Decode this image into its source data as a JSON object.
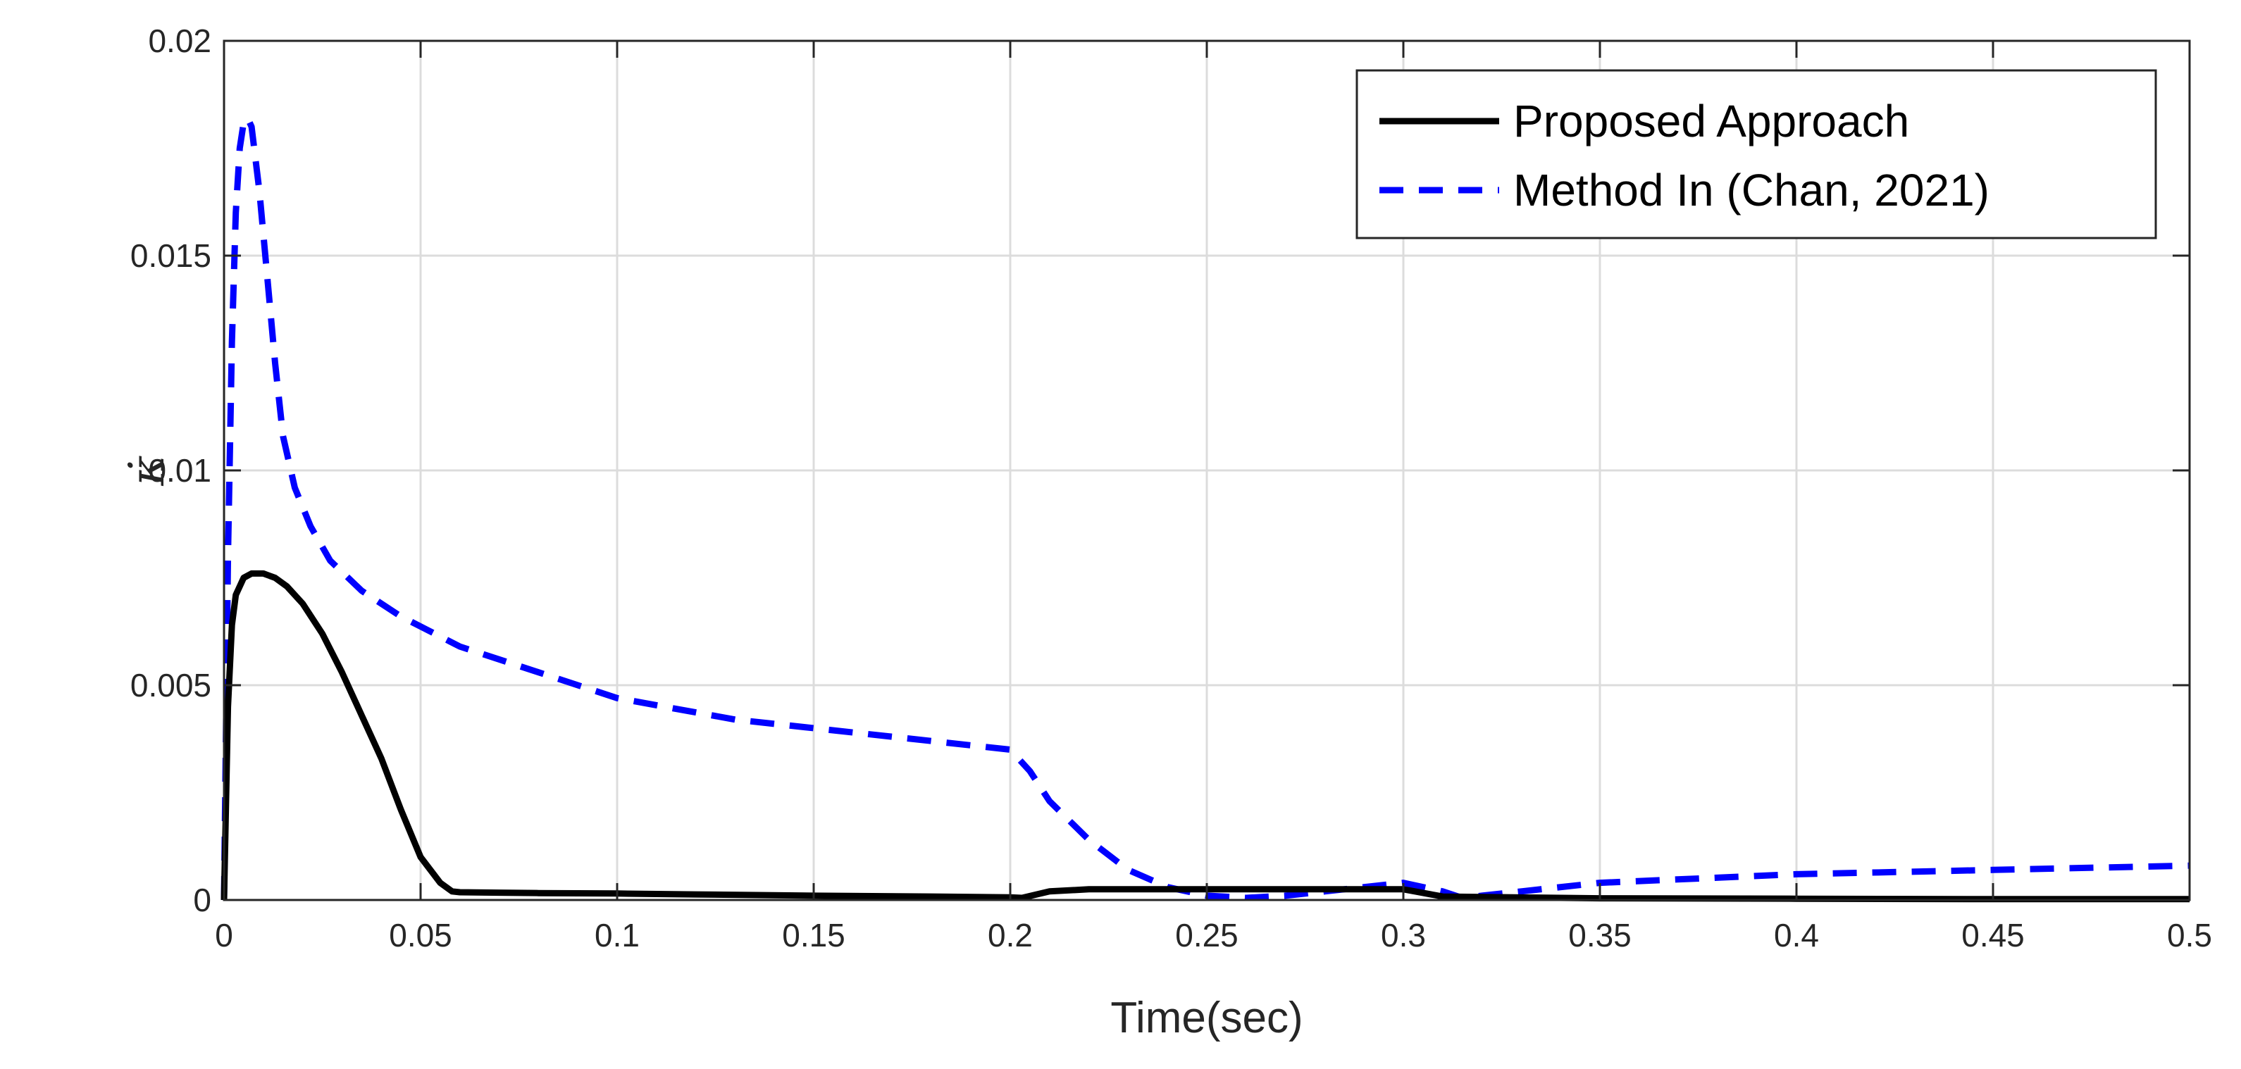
{
  "chart_data": {
    "type": "line",
    "xlabel": "Time(sec)",
    "ylabel": "κ̇",
    "xlim": [
      0,
      0.5
    ],
    "ylim": [
      0,
      0.02
    ],
    "grid": true,
    "legend_position": "top-right",
    "x_ticks": [
      0,
      0.05,
      0.1,
      0.15,
      0.2,
      0.25,
      0.3,
      0.35,
      0.4,
      0.45,
      0.5
    ],
    "x_tick_labels": [
      "0",
      "0.05",
      "0.1",
      "0.15",
      "0.2",
      "0.25",
      "0.3",
      "0.35",
      "0.4",
      "0.45",
      "0.5"
    ],
    "y_ticks": [
      0,
      0.005,
      0.01,
      0.015,
      0.02
    ],
    "y_tick_labels": [
      "0",
      "0.005",
      "0.01",
      "0.015",
      "0.02"
    ],
    "series": [
      {
        "name": "Proposed Approach",
        "color": "#000000",
        "style": "solid",
        "x": [
          0,
          0.001,
          0.002,
          0.003,
          0.005,
          0.007,
          0.01,
          0.013,
          0.016,
          0.02,
          0.025,
          0.03,
          0.035,
          0.04,
          0.045,
          0.05,
          0.055,
          0.058,
          0.06,
          0.07,
          0.08,
          0.1,
          0.12,
          0.15,
          0.18,
          0.2,
          0.203,
          0.21,
          0.22,
          0.25,
          0.28,
          0.3,
          0.31,
          0.35,
          0.4,
          0.45,
          0.5
        ],
        "y": [
          0,
          0.0045,
          0.0064,
          0.0071,
          0.0075,
          0.0076,
          0.0076,
          0.0075,
          0.0073,
          0.0069,
          0.0062,
          0.0053,
          0.0043,
          0.0033,
          0.0021,
          0.001,
          0.0004,
          0.0002,
          0.00018,
          0.00017,
          0.00016,
          0.00015,
          0.00013,
          0.0001,
          8e-05,
          6e-05,
          5e-05,
          0.0002,
          0.00025,
          0.00025,
          0.00025,
          0.00025,
          8e-05,
          4e-05,
          3e-05,
          2e-05,
          2e-05
        ]
      },
      {
        "name": "Method In (Chan, 2021)",
        "color": "#0000ff",
        "style": "dashed",
        "x": [
          0,
          0.001,
          0.002,
          0.003,
          0.004,
          0.005,
          0.006,
          0.007,
          0.009,
          0.011,
          0.013,
          0.015,
          0.018,
          0.022,
          0.027,
          0.035,
          0.045,
          0.06,
          0.08,
          0.1,
          0.13,
          0.15,
          0.18,
          0.2,
          0.205,
          0.21,
          0.22,
          0.23,
          0.24,
          0.25,
          0.26,
          0.27,
          0.28,
          0.29,
          0.3,
          0.31,
          0.315,
          0.32,
          0.33,
          0.35,
          0.4,
          0.45,
          0.5
        ],
        "y": [
          0,
          0.008,
          0.013,
          0.016,
          0.0175,
          0.0181,
          0.0182,
          0.018,
          0.0165,
          0.0145,
          0.0125,
          0.0108,
          0.0096,
          0.0087,
          0.0079,
          0.0072,
          0.0066,
          0.0059,
          0.0053,
          0.0047,
          0.0042,
          0.004,
          0.0037,
          0.0035,
          0.003,
          0.0023,
          0.0014,
          0.0007,
          0.0003,
          0.0001,
          5e-05,
          0.0001,
          0.0002,
          0.0003,
          0.0004,
          0.0002,
          5e-05,
          0.0001,
          0.0002,
          0.0004,
          0.0006,
          0.0007,
          0.0008
        ]
      }
    ]
  }
}
